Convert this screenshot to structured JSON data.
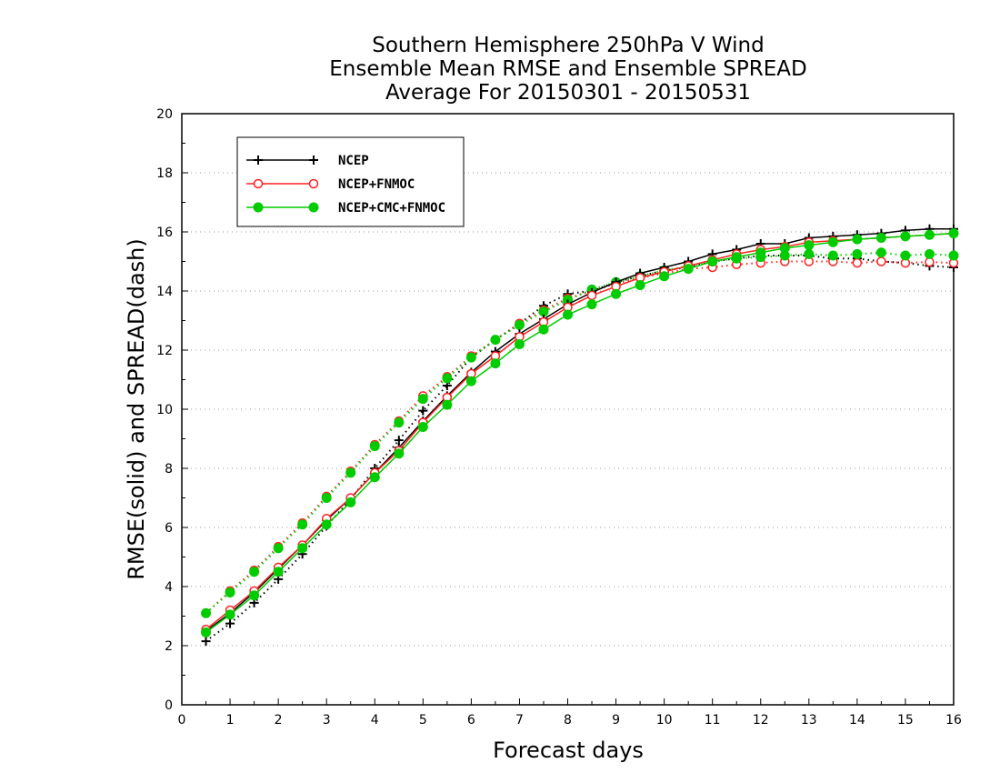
{
  "chart_data": {
    "type": "line",
    "title": [
      "Southern Hemisphere 250hPa V Wind",
      "Ensemble Mean RMSE and Ensemble SPREAD",
      "Average For 20150301 - 20150531"
    ],
    "xlabel": "Forecast days",
    "ylabel": "RMSE(solid) and SPREAD(dash)",
    "xlim": [
      0,
      16
    ],
    "ylim": [
      0,
      20
    ],
    "xticks": [
      0,
      1,
      2,
      3,
      4,
      5,
      6,
      7,
      8,
      9,
      10,
      11,
      12,
      13,
      14,
      15,
      16
    ],
    "yticks": [
      0,
      2,
      4,
      6,
      8,
      10,
      12,
      14,
      16,
      18,
      20
    ],
    "grid": "horizontal dotted",
    "legend_position": "top-left",
    "x": [
      0.5,
      1,
      1.5,
      2,
      2.5,
      3,
      3.5,
      4,
      4.5,
      5,
      5.5,
      6,
      6.5,
      7,
      7.5,
      8,
      8.5,
      9,
      9.5,
      10,
      10.5,
      11,
      11.5,
      12,
      12.5,
      13,
      13.5,
      14,
      14.5,
      15,
      15.5,
      16
    ],
    "series": [
      {
        "name": "NCEP",
        "color": "#000000",
        "marker": "plus",
        "rmse": [
          2.5,
          3.1,
          3.8,
          4.6,
          5.4,
          6.25,
          7.0,
          7.85,
          8.7,
          9.6,
          10.45,
          11.25,
          11.95,
          12.55,
          13.05,
          13.55,
          13.95,
          14.3,
          14.6,
          14.8,
          15.0,
          15.25,
          15.4,
          15.6,
          15.6,
          15.8,
          15.85,
          15.9,
          15.95,
          16.05,
          16.1,
          16.1
        ],
        "spread": [
          2.15,
          2.75,
          3.45,
          4.25,
          5.1,
          6.05,
          6.95,
          8.0,
          8.95,
          9.95,
          10.8,
          11.75,
          12.35,
          12.9,
          13.5,
          13.9,
          14.0,
          14.3,
          14.5,
          14.7,
          14.8,
          15.0,
          15.1,
          15.2,
          15.2,
          15.2,
          15.1,
          15.1,
          15.0,
          14.95,
          14.85,
          14.8
        ]
      },
      {
        "name": "NCEP+FNMOC",
        "color": "#ff2020",
        "marker": "open-circle",
        "rmse": [
          2.55,
          3.2,
          3.85,
          4.65,
          5.4,
          6.3,
          7.0,
          7.85,
          8.6,
          9.55,
          10.4,
          11.2,
          11.8,
          12.45,
          12.95,
          13.45,
          13.85,
          14.15,
          14.45,
          14.65,
          14.85,
          15.05,
          15.25,
          15.4,
          15.5,
          15.65,
          15.7,
          15.75,
          15.8,
          15.85,
          15.9,
          15.95
        ],
        "spread": [
          3.1,
          3.85,
          4.55,
          5.35,
          6.15,
          7.05,
          7.9,
          8.8,
          9.6,
          10.45,
          11.1,
          11.8,
          12.35,
          12.9,
          13.35,
          13.75,
          14.0,
          14.25,
          14.45,
          14.6,
          14.75,
          14.8,
          14.9,
          14.95,
          15.0,
          15.0,
          15.0,
          14.95,
          15.0,
          14.95,
          14.98,
          14.95
        ]
      },
      {
        "name": "NCEP+CMC+FNMOC",
        "color": "#00cc00",
        "marker": "filled-circle",
        "rmse": [
          2.45,
          3.05,
          3.7,
          4.5,
          5.3,
          6.1,
          6.85,
          7.7,
          8.5,
          9.4,
          10.15,
          10.95,
          11.55,
          12.2,
          12.7,
          13.2,
          13.55,
          13.9,
          14.2,
          14.5,
          14.75,
          15.0,
          15.15,
          15.3,
          15.45,
          15.55,
          15.65,
          15.75,
          15.8,
          15.85,
          15.9,
          15.95
        ],
        "spread": [
          3.1,
          3.8,
          4.5,
          5.3,
          6.1,
          7.0,
          7.85,
          8.75,
          9.55,
          10.35,
          11.05,
          11.75,
          12.35,
          12.85,
          13.3,
          13.7,
          14.05,
          14.3,
          14.5,
          14.7,
          14.85,
          15.0,
          15.1,
          15.15,
          15.2,
          15.25,
          15.2,
          15.25,
          15.3,
          15.2,
          15.25,
          15.2
        ]
      }
    ]
  }
}
